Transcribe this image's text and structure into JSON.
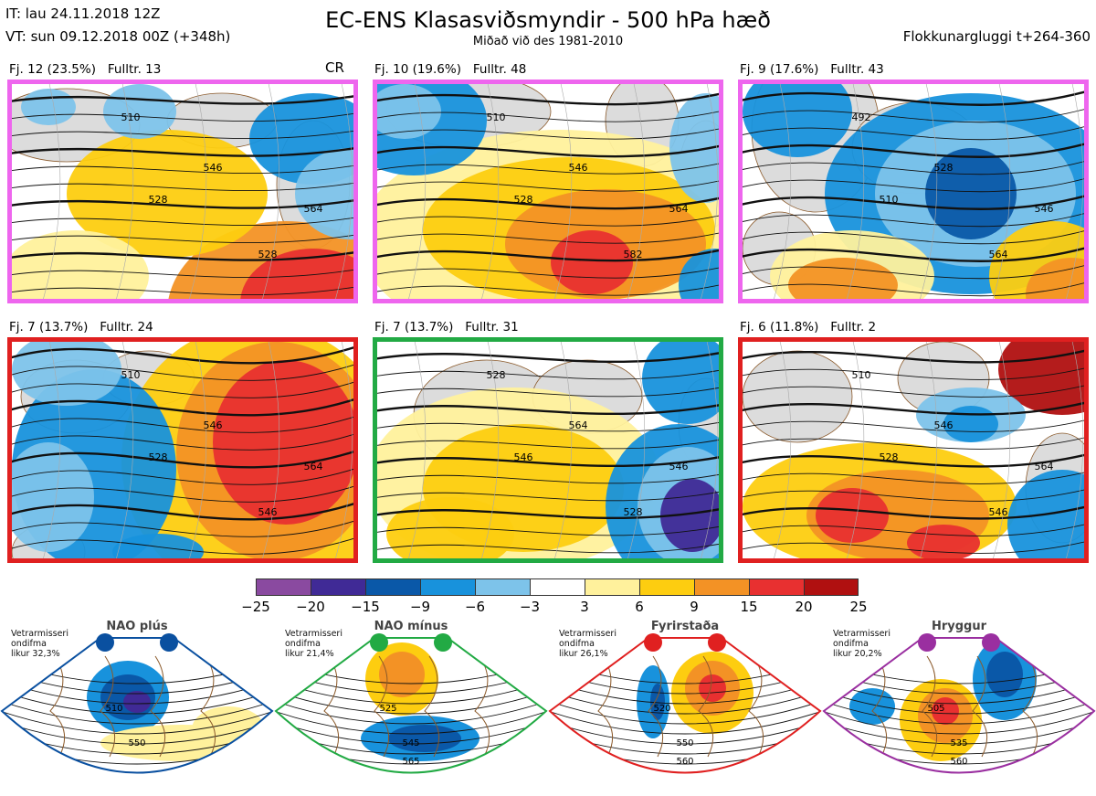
{
  "header": {
    "it_line": "IT: lau 24.11.2018 12Z",
    "vt_line": "VT: sun 09.12.2018 00Z  (+348h)",
    "title": "EC-ENS Klasasviðsmyndir - 500 hPa hæð",
    "subtitle": "Miðað við des 1981-2010",
    "window": "Flokkunargluggi t+264-360",
    "cr": "CR"
  },
  "panels": [
    {
      "label": "Fj. 12 (23.5%)",
      "member": "Fulltr. 13",
      "border": "#ee66ee",
      "contours": [
        "510",
        "528",
        "546",
        "564",
        "528"
      ]
    },
    {
      "label": "Fj. 10 (19.6%)",
      "member": "Fulltr. 48",
      "border": "#ee66ee",
      "contours": [
        "510",
        "528",
        "546",
        "564",
        "582"
      ]
    },
    {
      "label": "Fj. 9 (17.6%)",
      "member": "Fulltr. 43",
      "border": "#ee66ee",
      "contours": [
        "492",
        "510",
        "528",
        "546",
        "564"
      ]
    },
    {
      "label": "Fj. 7 (13.7%)",
      "member": "Fulltr. 24",
      "border": "#e02020",
      "contours": [
        "510",
        "528",
        "546",
        "564",
        "546"
      ]
    },
    {
      "label": "Fj. 7 (13.7%)",
      "member": "Fulltr. 31",
      "border": "#22aa44",
      "contours": [
        "528",
        "546",
        "564",
        "546",
        "528"
      ]
    },
    {
      "label": "Fj. 6 (11.8%)",
      "member": "Fulltr. 2",
      "border": "#e02020",
      "contours": [
        "510",
        "528",
        "546",
        "564",
        "546"
      ]
    }
  ],
  "colorbar": {
    "colors": [
      "#8a4aa0",
      "#402a96",
      "#0a58a8",
      "#1892dc",
      "#7dc3ea",
      "#ffffff",
      "#fff19c",
      "#fdcd10",
      "#f39225",
      "#e83030",
      "#b01010"
    ],
    "ticks": [
      "−25",
      "−20",
      "−15",
      "−9",
      "−6",
      "−3",
      "3",
      "6",
      "9",
      "15",
      "20",
      "25"
    ]
  },
  "regimes": [
    {
      "name": "NAO plús",
      "prob": "Vetrarmisseri\nondifma\nlikur 32,3%",
      "color": "#0a50a0",
      "contours": [
        "510",
        "550"
      ]
    },
    {
      "name": "NAO mínus",
      "prob": "Vetrarmisseri\nondifma\nlikur 21,4%",
      "color": "#22aa44",
      "contours": [
        "525",
        "545",
        "565"
      ]
    },
    {
      "name": "Fyrirstaða",
      "prob": "Vetrarmisseri\nondifma\nlikur 26,1%",
      "color": "#e02020",
      "contours": [
        "520",
        "550",
        "560"
      ]
    },
    {
      "name": "Hryggur",
      "prob": "Vetrarmisseri\nondifma\nlikur 20,2%",
      "color": "#9a2fa0",
      "contours": [
        "505",
        "535",
        "560"
      ]
    }
  ]
}
